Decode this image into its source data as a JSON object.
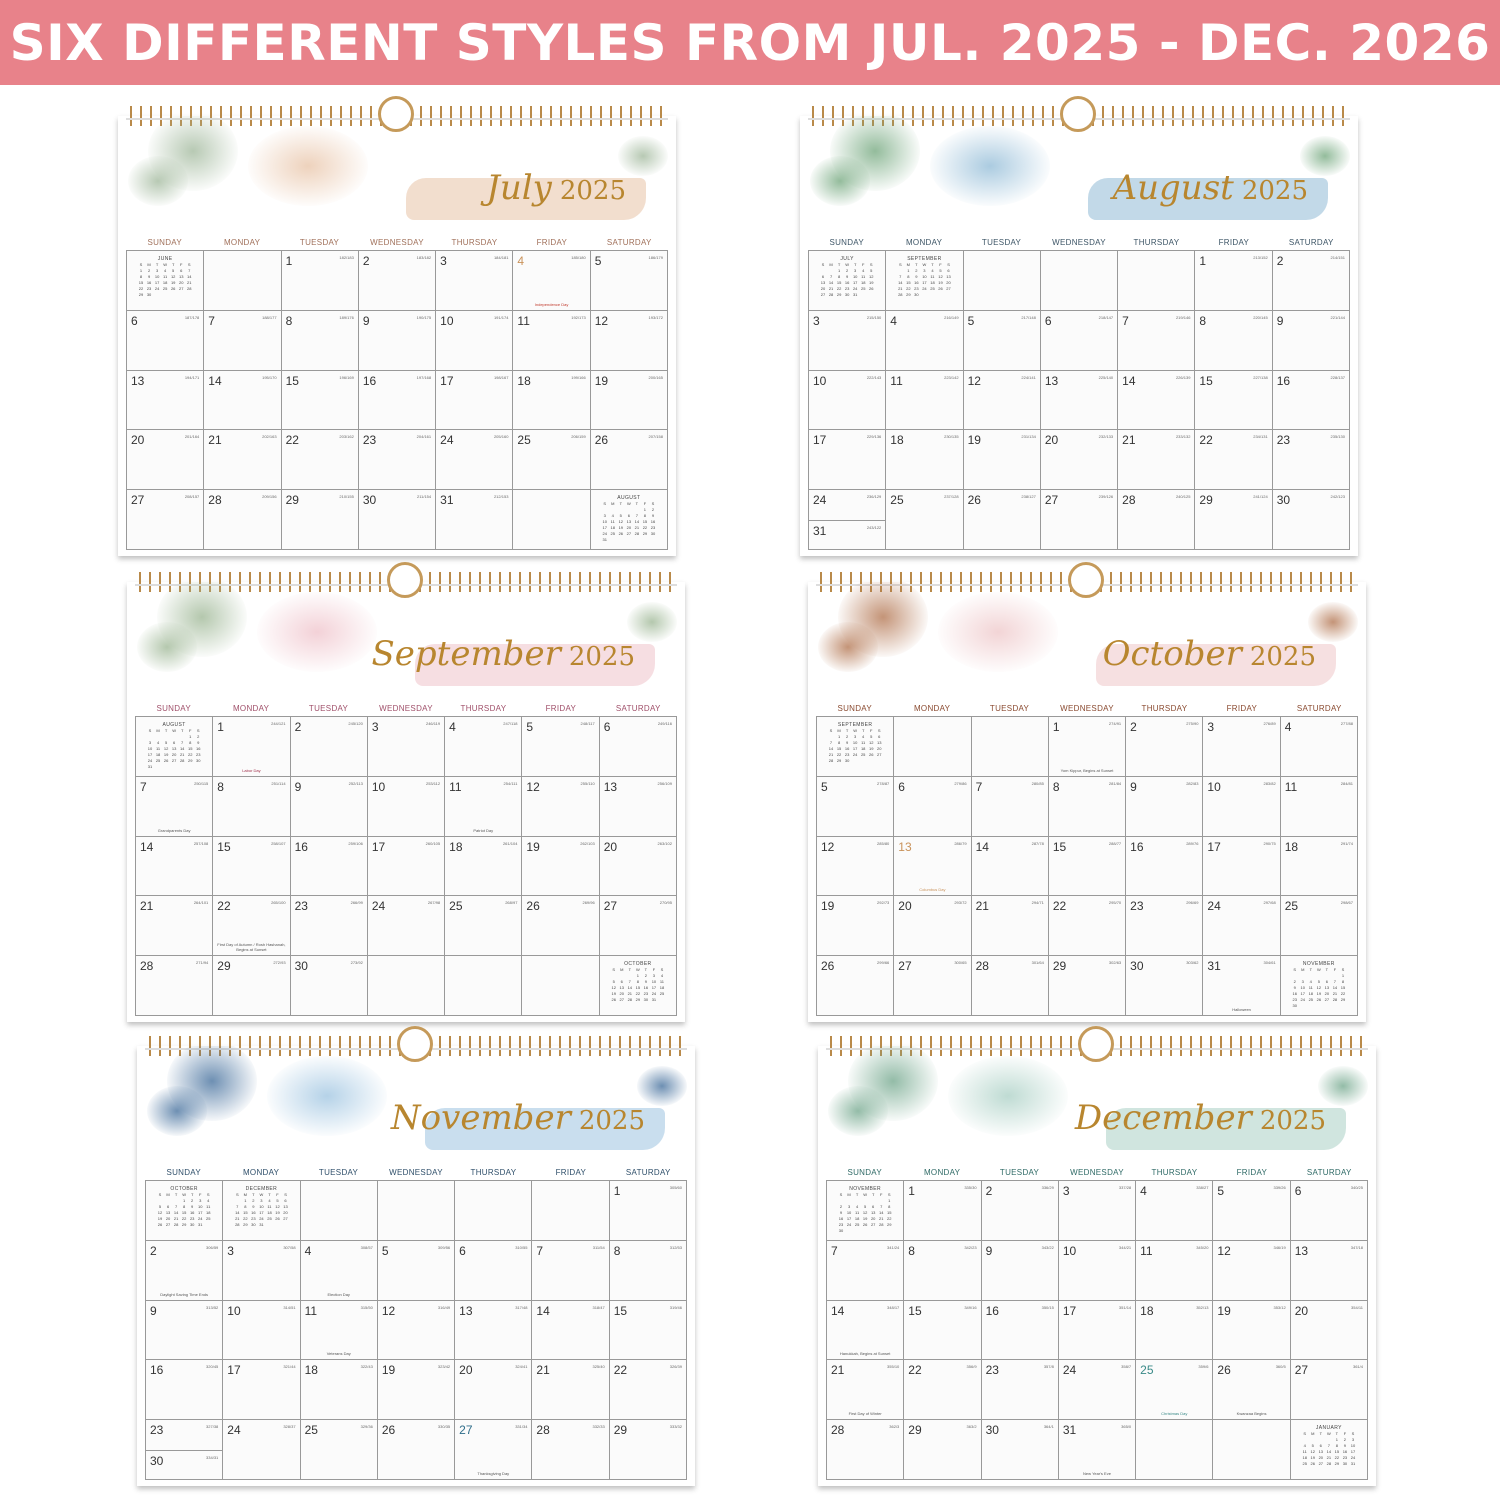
{
  "banner": {
    "text": "SIX DIFFERENT STYLES FROM JUL. 2025 - DEC. 2026",
    "color": "#e8828a"
  },
  "weekdays": [
    "SUNDAY",
    "MONDAY",
    "TUESDAY",
    "WEDNESDAY",
    "THURSDAY",
    "FRIDAY",
    "SATURDAY"
  ],
  "mini_weekdays": [
    "S",
    "M",
    "T",
    "W",
    "T",
    "F",
    "S"
  ],
  "calendars": [
    {
      "month_name": "July",
      "year": 2025,
      "month": 7,
      "accent": "#e8c3a6",
      "accent2": "#9fb79a",
      "weekday_color": "#a0705a",
      "title_color": "#b8862f",
      "prev_mini": {
        "label": "JUNE",
        "year": 2025,
        "month": 6
      },
      "next_mini": {
        "label": "AUGUST",
        "year": 2025,
        "month": 8
      },
      "holidays": [
        {
          "day": 4,
          "label": "Independence Day",
          "color": "#c0392b",
          "date_color": "#c9925a"
        }
      ]
    },
    {
      "month_name": "August",
      "year": 2025,
      "month": 8,
      "accent": "#8fbad6",
      "accent2": "#6fa57a",
      "weekday_color": "#3d5566",
      "title_color": "#b8862f",
      "prev_mini": {
        "label": "JULY",
        "year": 2025,
        "month": 7
      },
      "next_mini": {
        "label": "SEPTEMBER",
        "year": 2025,
        "month": 9
      },
      "holidays": []
    },
    {
      "month_name": "September",
      "year": 2025,
      "month": 9,
      "accent": "#efc2ca",
      "accent2": "#9bb592",
      "weekday_color": "#a0506a",
      "title_color": "#b8862f",
      "prev_mini": {
        "label": "AUGUST",
        "year": 2025,
        "month": 8
      },
      "next_mini": {
        "label": "OCTOBER",
        "year": 2025,
        "month": 10
      },
      "holidays": [
        {
          "day": 1,
          "label": "Labor Day",
          "color": "#a0304a"
        },
        {
          "day": 7,
          "label": "Grandparents Day"
        },
        {
          "day": 11,
          "label": "Patriot Day"
        },
        {
          "day": 22,
          "label": "First Day of Autumn / Rosh Hashanah, Begins at Sunset"
        }
      ]
    },
    {
      "month_name": "October",
      "year": 2025,
      "month": 10,
      "accent": "#eec6c8",
      "accent2": "#b0704a",
      "weekday_color": "#8a4a30",
      "title_color": "#b8862f",
      "prev_mini": {
        "label": "SEPTEMBER",
        "year": 2025,
        "month": 9
      },
      "next_mini": {
        "label": "NOVEMBER",
        "year": 2025,
        "month": 11
      },
      "holidays": [
        {
          "day": 1,
          "label": "Yom Kippur, Begins at Sunset"
        },
        {
          "day": 13,
          "label": "Columbus Day",
          "color": "#c9925a",
          "date_color": "#c9925a"
        },
        {
          "day": 31,
          "label": "Halloween"
        }
      ]
    },
    {
      "month_name": "November",
      "year": 2025,
      "month": 11,
      "accent": "#9cc3e0",
      "accent2": "#3d6a99",
      "weekday_color": "#2f4f6a",
      "title_color": "#b8862f",
      "prev_mini": {
        "label": "OCTOBER",
        "year": 2025,
        "month": 10
      },
      "next_mini": {
        "label": "DECEMBER",
        "year": 2025,
        "month": 12
      },
      "holidays": [
        {
          "day": 2,
          "label": "Daylight Saving Time Ends"
        },
        {
          "day": 4,
          "label": "Election Day"
        },
        {
          "day": 11,
          "label": "Veterans Day"
        },
        {
          "day": 27,
          "label": "Thanksgiving Day",
          "date_color": "#2f6d8a"
        }
      ]
    },
    {
      "month_name": "December",
      "year": 2025,
      "month": 12,
      "accent": "#a9cfc4",
      "accent2": "#6fa58a",
      "weekday_color": "#2f6a66",
      "title_color": "#b8862f",
      "prev_mini": {
        "label": "NOVEMBER",
        "year": 2025,
        "month": 11
      },
      "next_mini": {
        "label": "JANUARY",
        "year": 2026,
        "month": 1
      },
      "holidays": [
        {
          "day": 14,
          "label": "Hanukkah, Begins at Sunset"
        },
        {
          "day": 21,
          "label": "First Day of Winter"
        },
        {
          "day": 25,
          "label": "Christmas Day",
          "color": "#3a8a88",
          "date_color": "#3a8a88"
        },
        {
          "day": 26,
          "label": "Kwanzaa Begins"
        },
        {
          "day": 31,
          "label": "New Year's Eve"
        }
      ]
    }
  ]
}
